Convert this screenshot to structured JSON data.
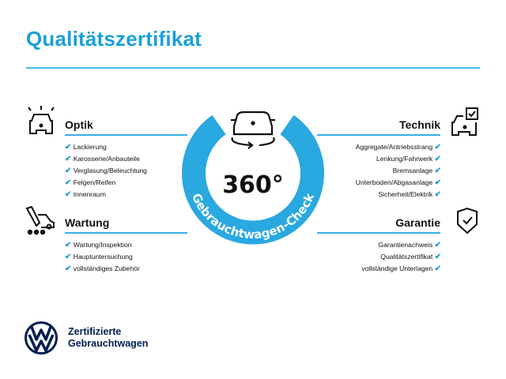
{
  "title": "Qualitätszertifikat",
  "accent": "#1aa0d8",
  "center": {
    "degrees": "360°",
    "ring_text": "Gebrauchtwagen-Check",
    "icon": "car-rotate-icon"
  },
  "sections": {
    "optik": {
      "title": "Optik",
      "icon": "car-lights-icon",
      "items": [
        "Lackierung",
        "Karosserie/Anbauteile",
        "Verglasung/Beleuchtung",
        "Felgen/Reifen",
        "Innenraum"
      ]
    },
    "wartung": {
      "title": "Wartung",
      "icon": "car-service-icon",
      "items": [
        "Wartung/Inspektion",
        "Hauptuntersuchung",
        "vollständiges Zubehör"
      ]
    },
    "technik": {
      "title": "Technik",
      "icon": "car-checkbox-icon",
      "items": [
        "Aggregate/Antriebsstrang",
        "Lenkung/Fahrwerk",
        "Bremsanlage",
        "Unterboden/Abgasanlage",
        "Sicherheit/Elektrik"
      ]
    },
    "garantie": {
      "title": "Garantie",
      "icon": "shield-check-icon",
      "items": [
        "Garantienachweis",
        "Qualitätszertifikat",
        "vollständige Unterlagen"
      ]
    }
  },
  "check_mark": "✔",
  "footer": {
    "line1": "Zertifizierte",
    "line2": "Gebrauchtwagen",
    "logo": "VW"
  }
}
